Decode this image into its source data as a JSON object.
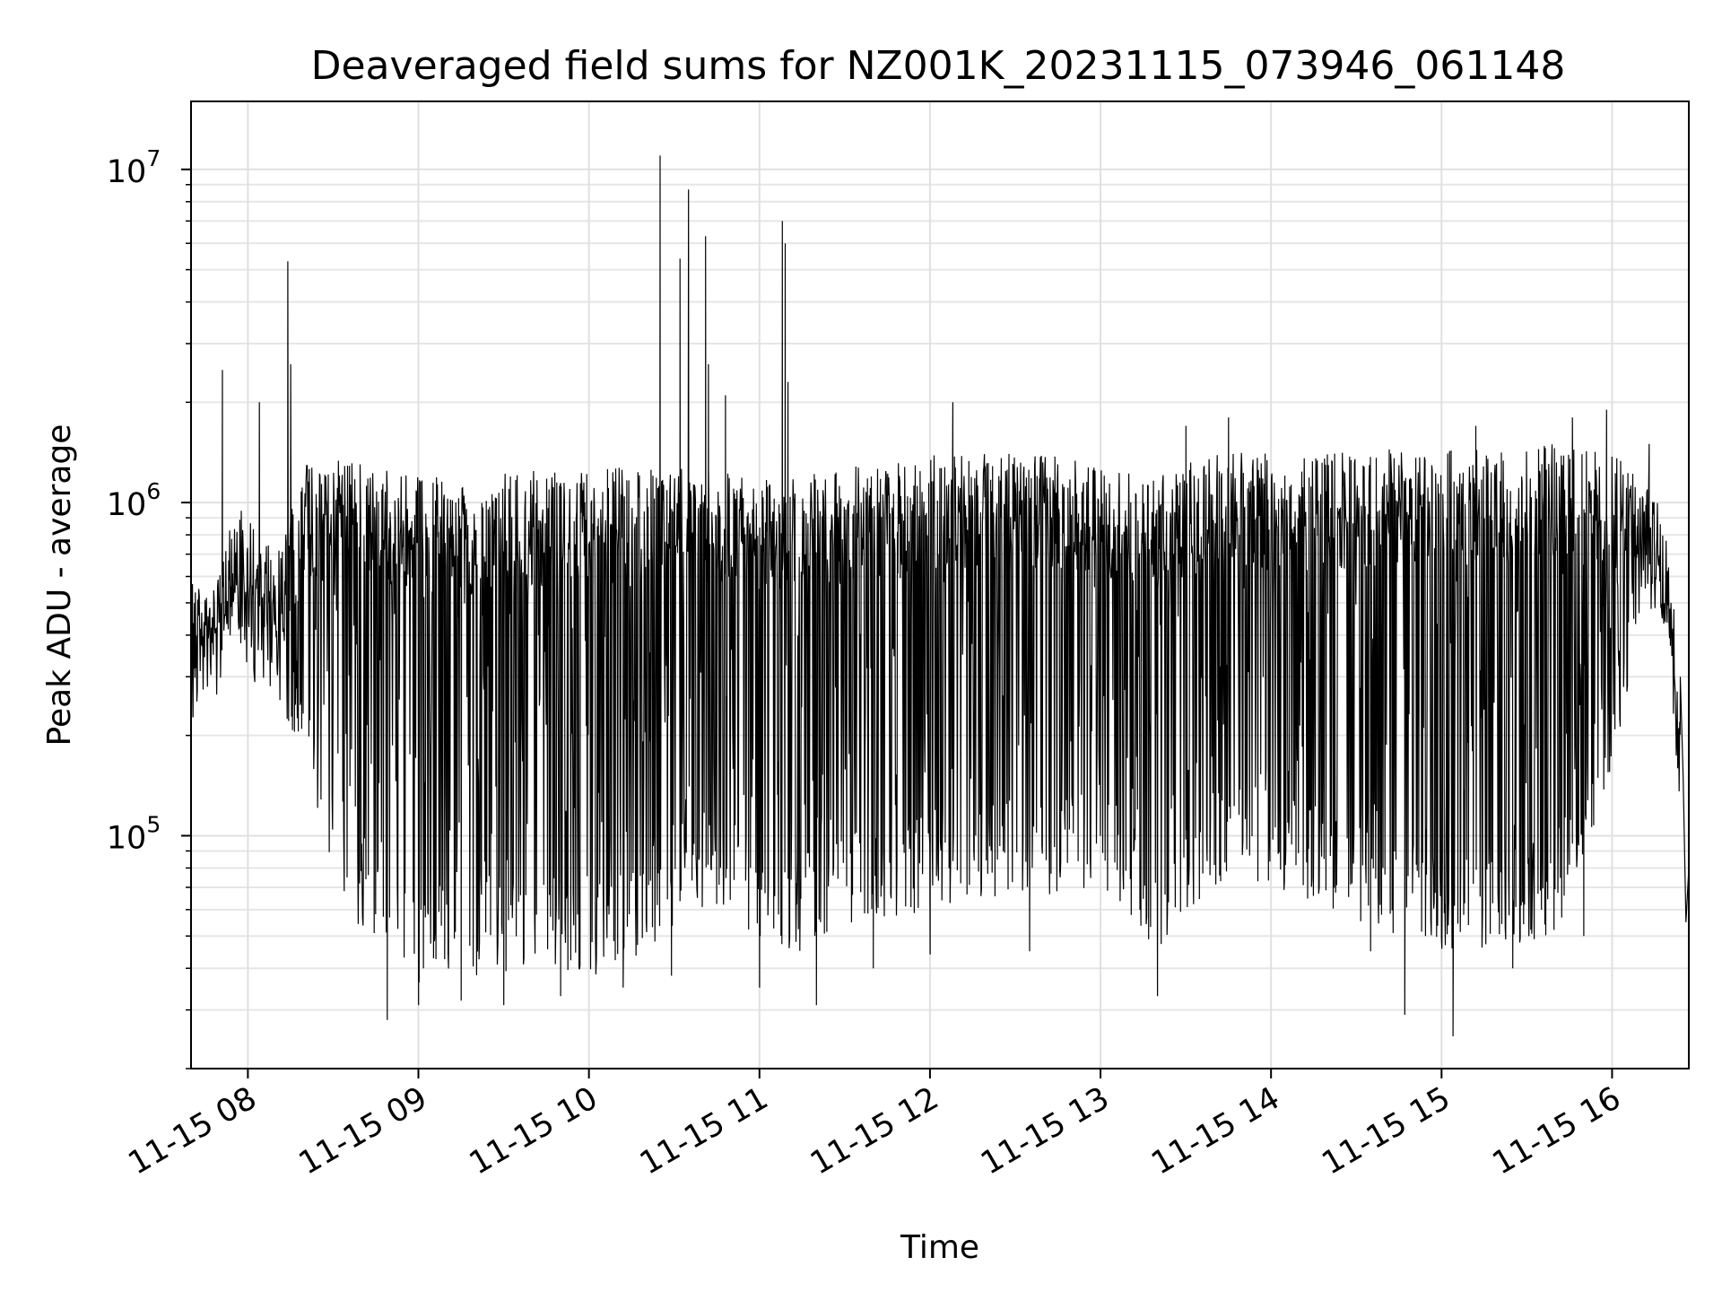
{
  "chart_data": {
    "type": "line",
    "title": "Deaveraged field sums for NZ001K_20231115_073946_061148",
    "xlabel": "Time",
    "ylabel": "Peak ADU - average",
    "yscale": "log",
    "grid": true,
    "line_color": "#000000",
    "xlim": [
      "2023-11-15 07:40",
      "2023-11-15 16:27"
    ],
    "ylim": [
      20000,
      16000000
    ],
    "x_ticks": [
      "11-15 08",
      "11-15 09",
      "11-15 10",
      "11-15 11",
      "11-15 12",
      "11-15 13",
      "11-15 14",
      "11-15 15",
      "11-15 16"
    ],
    "y_ticks": [
      {
        "base": "10",
        "exp": "5",
        "value": 100000
      },
      {
        "base": "10",
        "exp": "6",
        "value": 1000000
      },
      {
        "base": "10",
        "exp": "7",
        "value": 10000000
      }
    ],
    "series": [
      {
        "envelope": [
          {
            "t": "07:40",
            "high": 500000,
            "low": 300000
          },
          {
            "t": "07:50",
            "high": 600000,
            "low": 350000
          },
          {
            "t": "07:55",
            "high": 1000000,
            "low": 450000
          },
          {
            "t": "08:00",
            "high": 900000,
            "low": 300000
          },
          {
            "t": "08:10",
            "high": 700000,
            "low": 250000
          },
          {
            "t": "08:20",
            "high": 1300000,
            "low": 150000
          },
          {
            "t": "08:30",
            "high": 1400000,
            "low": 80000
          },
          {
            "t": "08:40",
            "high": 1300000,
            "low": 50000
          },
          {
            "t": "08:50",
            "high": 1250000,
            "low": 38000
          },
          {
            "t": "09:00",
            "high": 1200000,
            "low": 36000
          },
          {
            "t": "09:20",
            "high": 1200000,
            "low": 38000
          },
          {
            "t": "09:40",
            "high": 1250000,
            "low": 38000
          },
          {
            "t": "10:00",
            "high": 1250000,
            "low": 37000
          },
          {
            "t": "10:20",
            "high": 1300000,
            "low": 45000
          },
          {
            "t": "10:40",
            "high": 1300000,
            "low": 60000
          },
          {
            "t": "11:00",
            "high": 1200000,
            "low": 45000
          },
          {
            "t": "11:20",
            "high": 1250000,
            "low": 45000
          },
          {
            "t": "11:40",
            "high": 1300000,
            "low": 55000
          },
          {
            "t": "12:00",
            "high": 1400000,
            "low": 60000
          },
          {
            "t": "12:20",
            "high": 1400000,
            "low": 65000
          },
          {
            "t": "12:40",
            "high": 1400000,
            "low": 65000
          },
          {
            "t": "13:00",
            "high": 1300000,
            "low": 70000
          },
          {
            "t": "13:20",
            "high": 1200000,
            "low": 45000
          },
          {
            "t": "13:40",
            "high": 1450000,
            "low": 70000
          },
          {
            "t": "14:00",
            "high": 1400000,
            "low": 70000
          },
          {
            "t": "14:20",
            "high": 1400000,
            "low": 60000
          },
          {
            "t": "14:40",
            "high": 1450000,
            "low": 50000
          },
          {
            "t": "15:00",
            "high": 1450000,
            "low": 45000
          },
          {
            "t": "15:20",
            "high": 1450000,
            "low": 45000
          },
          {
            "t": "15:40",
            "high": 1500000,
            "low": 50000
          },
          {
            "t": "16:00",
            "high": 1400000,
            "low": 150000
          },
          {
            "t": "16:10",
            "high": 1300000,
            "low": 450000
          },
          {
            "t": "16:20",
            "high": 900000,
            "low": 400000
          },
          {
            "t": "16:25",
            "high": 150000,
            "low": 55000
          },
          {
            "t": "16:27",
            "high": 80000,
            "low": 55000
          }
        ],
        "peaks": [
          {
            "t": "07:51",
            "value": 2500000
          },
          {
            "t": "08:04",
            "value": 2000000
          },
          {
            "t": "08:14",
            "value": 5300000
          },
          {
            "t": "08:15",
            "value": 2600000
          },
          {
            "t": "10:25",
            "value": 11000000
          },
          {
            "t": "10:32",
            "value": 5400000
          },
          {
            "t": "10:35",
            "value": 8700000
          },
          {
            "t": "10:41",
            "value": 6300000
          },
          {
            "t": "10:42",
            "value": 2600000
          },
          {
            "t": "10:48",
            "value": 2100000
          },
          {
            "t": "11:08",
            "value": 7000000
          },
          {
            "t": "11:09",
            "value": 6000000
          },
          {
            "t": "11:10",
            "value": 2300000
          },
          {
            "t": "12:08",
            "value": 2000000
          },
          {
            "t": "13:30",
            "value": 1700000
          },
          {
            "t": "13:45",
            "value": 1800000
          },
          {
            "t": "15:12",
            "value": 1700000
          },
          {
            "t": "15:46",
            "value": 1800000
          },
          {
            "t": "15:58",
            "value": 1900000
          },
          {
            "t": "16:13",
            "value": 1500000
          }
        ],
        "dips": [
          {
            "t": "08:49",
            "value": 28000
          },
          {
            "t": "09:00",
            "value": 31000
          },
          {
            "t": "09:15",
            "value": 32000
          },
          {
            "t": "09:30",
            "value": 31000
          },
          {
            "t": "09:50",
            "value": 33000
          },
          {
            "t": "10:12",
            "value": 35000
          },
          {
            "t": "10:29",
            "value": 38000
          },
          {
            "t": "11:00",
            "value": 35000
          },
          {
            "t": "11:20",
            "value": 31000
          },
          {
            "t": "11:40",
            "value": 40000
          },
          {
            "t": "12:00",
            "value": 44000
          },
          {
            "t": "12:35",
            "value": 45000
          },
          {
            "t": "13:20",
            "value": 33000
          },
          {
            "t": "14:35",
            "value": 45000
          },
          {
            "t": "14:47",
            "value": 29000
          },
          {
            "t": "15:04",
            "value": 25000
          },
          {
            "t": "15:25",
            "value": 40000
          },
          {
            "t": "15:50",
            "value": 50000
          }
        ]
      }
    ]
  }
}
